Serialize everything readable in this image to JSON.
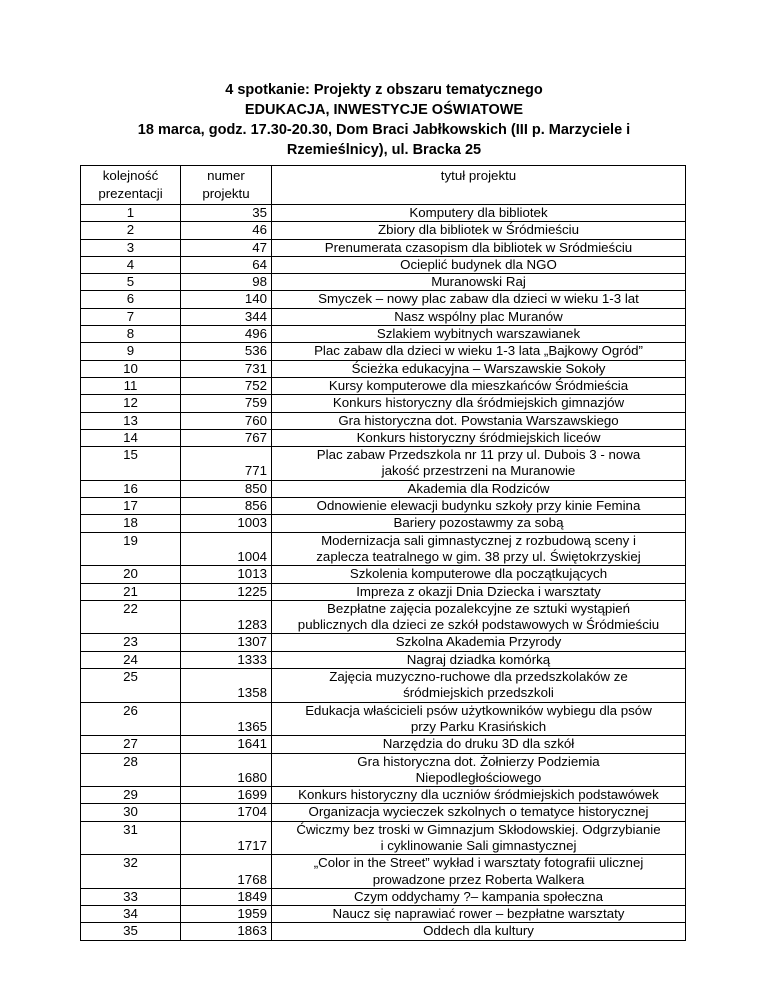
{
  "heading": {
    "line1": "4 spotkanie: Projekty z obszaru tematycznego",
    "line2": "EDUKACJA, INWESTYCJE OŚWIATOWE",
    "line3": "18 marca, godz. 17.30-20.30, Dom Braci Jabłkowskich (III p. Marzyciele i\nRzemieślnicy), ul. Bracka 25"
  },
  "table": {
    "headers": [
      "kolejność\nprezentacji",
      "numer\nprojektu",
      "tytuł projektu"
    ],
    "rows": [
      [
        "1",
        "35",
        "Komputery dla bibliotek"
      ],
      [
        "2",
        "46",
        "Zbiory dla bibliotek w Śródmieściu"
      ],
      [
        "3",
        "47",
        "Prenumerata czasopism dla bibliotek w Sródmieściu"
      ],
      [
        "4",
        "64",
        "Ocieplić budynek dla NGO"
      ],
      [
        "5",
        "98",
        "Muranowski Raj"
      ],
      [
        "6",
        "140",
        "Smyczek – nowy plac zabaw dla dzieci w wieku 1-3 lat"
      ],
      [
        "7",
        "344",
        "Nasz wspólny plac Muranów"
      ],
      [
        "8",
        "496",
        "Szlakiem wybitnych warszawianek"
      ],
      [
        "9",
        "536",
        "Plac zabaw dla dzieci w wieku 1-3 lata „Bajkowy Ogród”"
      ],
      [
        "10",
        "731",
        "Ścieżka edukacyjna – Warszawskie Sokoły"
      ],
      [
        "11",
        "752",
        "Kursy komputerowe dla mieszkańców Śródmieścia"
      ],
      [
        "12",
        "759",
        "Konkurs historyczny dla śródmiejskich gimnazjów"
      ],
      [
        "13",
        "760",
        "Gra historyczna dot. Powstania Warszawskiego"
      ],
      [
        "14",
        "767",
        "Konkurs historyczny śródmiejskich liceów"
      ],
      [
        "15",
        "771",
        "Plac zabaw  Przedszkola nr 11 przy ul. Dubois 3 -  nowa\njakość przestrzeni na Muranowie"
      ],
      [
        "16",
        "850",
        "Akademia dla Rodziców"
      ],
      [
        "17",
        "856",
        "Odnowienie elewacji budynku szkoły przy kinie Femina"
      ],
      [
        "18",
        "1003",
        "Bariery pozostawmy za sobą"
      ],
      [
        "19",
        "1004",
        "Modernizacja sali gimnastycznej z rozbudową sceny i\nzaplecza teatralnego w gim. 38 przy ul. Świętokrzyskiej"
      ],
      [
        "20",
        "1013",
        "Szkolenia komputerowe dla początkujących"
      ],
      [
        "21",
        "1225",
        "Impreza z okazji Dnia Dziecka i warsztaty"
      ],
      [
        "22",
        "1283",
        "Bezpłatne zajęcia pozalekcyjne ze sztuki wystąpień\npublicznych dla dzieci ze szkół podstawowych w Śródmieściu"
      ],
      [
        "23",
        "1307",
        "Szkolna Akademia Przyrody"
      ],
      [
        "24",
        "1333",
        "Nagraj dziadka komórką"
      ],
      [
        "25",
        "1358",
        "Zajęcia muzyczno-ruchowe dla przedszkolaków ze\nśródmiejskich przedszkoli"
      ],
      [
        "26",
        "1365",
        "Edukacja właścicieli psów użytkowników wybiegu dla psów\nprzy Parku Krasińskich"
      ],
      [
        "27",
        "1641",
        "Narzędzia do druku 3D dla szkół"
      ],
      [
        "28",
        "1680",
        "Gra historyczna dot. Żołnierzy Podziemia\nNiepodległościowego"
      ],
      [
        "29",
        "1699",
        "Konkurs historyczny dla uczniów śródmiejskich podstawówek"
      ],
      [
        "30",
        "1704",
        "Organizacja wycieczek szkolnych o tematyce historycznej"
      ],
      [
        "31",
        "1717",
        "Ćwiczmy bez troski w Gimnazjum Skłodowskiej. Odgrzybianie\ni cyklinowanie Sali gimnastycznej"
      ],
      [
        "32",
        "1768",
        "„Color in the Street” wykład i warsztaty fotografii ulicznej\nprowadzone przez Roberta Walkera"
      ],
      [
        "33",
        "1849",
        "Czym oddychamy ?– kampania społeczna"
      ],
      [
        "34",
        "1959",
        "Naucz się naprawiać rower – bezpłatne warsztaty"
      ],
      [
        "35",
        "1863",
        "Oddech dla kultury"
      ]
    ]
  }
}
